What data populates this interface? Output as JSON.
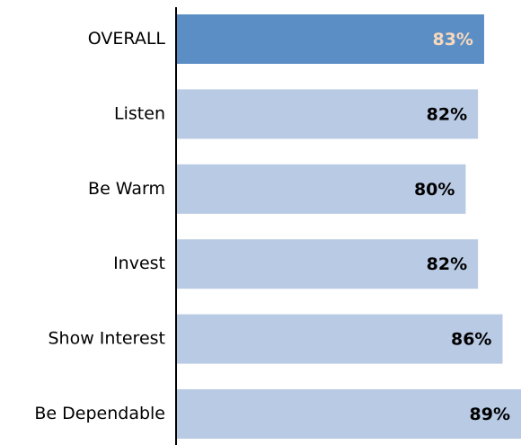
{
  "chart_data": {
    "type": "barh",
    "categories": [
      "OVERALL",
      "Listen",
      "Be Warm",
      "Invest",
      "Show Interest",
      "Be Dependable"
    ],
    "values": [
      83,
      82,
      80,
      82,
      86,
      89
    ],
    "value_labels": [
      "83%",
      "82%",
      "80%",
      "82%",
      "86%",
      "89%"
    ],
    "colors": [
      "#5b8ec4",
      "#b9cae4",
      "#b9cae4",
      "#b9cae4",
      "#b9cae4",
      "#b9cae4"
    ],
    "value_label_colors": [
      "#f8d9bd",
      "#000000",
      "#000000",
      "#000000",
      "#000000",
      "#000000"
    ],
    "xlim": [
      33,
      89
    ]
  }
}
